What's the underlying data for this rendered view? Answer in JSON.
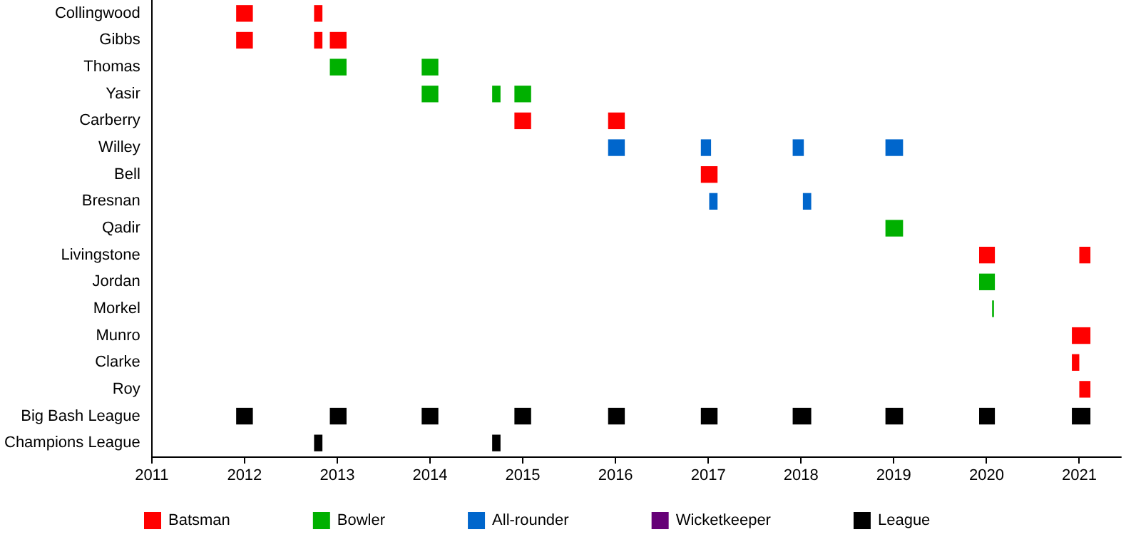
{
  "chart_data": {
    "type": "bar",
    "orientation": "horizontal",
    "grid": false,
    "legend": "bottom",
    "categories": [
      "Collingwood",
      "Gibbs",
      "Thomas",
      "Yasir",
      "Carberry",
      "Willey",
      "Bell",
      "Bresnan",
      "Qadir",
      "Livingstone",
      "Jordan",
      "Morkel",
      "Munro",
      "Clarke",
      "Roy",
      "Big Bash League",
      "Champions League"
    ],
    "xlim": [
      2011,
      2021.45
    ],
    "xticks": [
      2011,
      2012,
      2013,
      2014,
      2015,
      2016,
      2017,
      2018,
      2019,
      2020,
      2021
    ],
    "series": [
      {
        "name": "Batsman",
        "color": "#ff0000",
        "base": [
          2011.91,
          2011.91,
          null,
          null,
          2014.91,
          null,
          2016.92,
          null,
          null,
          2019.92,
          null,
          null,
          2020.92,
          2020.92,
          2021.0,
          null,
          null
        ],
        "values": [
          0.18,
          0.18,
          null,
          null,
          0.18,
          null,
          0.18,
          null,
          null,
          0.17,
          null,
          null,
          0.2,
          0.08,
          0.12,
          null,
          null
        ]
      },
      {
        "color": "#ff0000",
        "base": [
          2012.75,
          2012.75,
          null,
          null,
          2015.92,
          null,
          null,
          null,
          null,
          2021.0,
          null,
          null,
          null,
          null,
          null,
          null,
          null
        ],
        "values": [
          0.09,
          0.09,
          null,
          null,
          0.18,
          null,
          null,
          null,
          null,
          0.12,
          null,
          null,
          null,
          null,
          null,
          null,
          null
        ]
      },
      {
        "color": "#ff0000",
        "base": [
          null,
          2012.92,
          null,
          null,
          null,
          null,
          null,
          null,
          null,
          null,
          null,
          null,
          null,
          null,
          null,
          null,
          null
        ],
        "values": [
          null,
          0.18,
          null,
          null,
          null,
          null,
          null,
          null,
          null,
          null,
          null,
          null,
          null,
          null,
          null,
          null,
          null
        ]
      },
      {
        "name": "Bowler",
        "color": "#00b000",
        "base": [
          null,
          null,
          2012.92,
          2013.91,
          null,
          null,
          null,
          null,
          2018.91,
          null,
          2019.92,
          2020.06,
          null,
          null,
          null,
          null,
          null
        ],
        "values": [
          null,
          null,
          0.18,
          0.18,
          null,
          null,
          null,
          null,
          0.19,
          null,
          0.17,
          0.02,
          null,
          null,
          null,
          null,
          null
        ]
      },
      {
        "color": "#00b000",
        "base": [
          null,
          null,
          2013.91,
          2014.67,
          null,
          null,
          null,
          null,
          null,
          null,
          null,
          null,
          null,
          null,
          null,
          null,
          null
        ],
        "values": [
          null,
          null,
          0.18,
          0.09,
          null,
          null,
          null,
          null,
          null,
          null,
          null,
          null,
          null,
          null,
          null,
          null,
          null
        ]
      },
      {
        "color": "#00b000",
        "base": [
          null,
          null,
          null,
          2014.91,
          null,
          null,
          null,
          null,
          null,
          null,
          null,
          null,
          null,
          null,
          null,
          null,
          null
        ],
        "values": [
          null,
          null,
          null,
          0.18,
          null,
          null,
          null,
          null,
          null,
          null,
          null,
          null,
          null,
          null,
          null,
          null,
          null
        ]
      },
      {
        "name": "All-rounder",
        "color": "#0066cc",
        "base": [
          null,
          null,
          null,
          null,
          null,
          2015.92,
          null,
          2017.01,
          null,
          null,
          null,
          null,
          null,
          null,
          null,
          null,
          null
        ],
        "values": [
          null,
          null,
          null,
          null,
          null,
          0.18,
          null,
          0.09,
          null,
          null,
          null,
          null,
          null,
          null,
          null,
          null,
          null
        ]
      },
      {
        "color": "#0066cc",
        "base": [
          null,
          null,
          null,
          null,
          null,
          2016.92,
          null,
          2018.02,
          null,
          null,
          null,
          null,
          null,
          null,
          null,
          null,
          null
        ],
        "values": [
          null,
          null,
          null,
          null,
          null,
          0.11,
          null,
          0.09,
          null,
          null,
          null,
          null,
          null,
          null,
          null,
          null,
          null
        ]
      },
      {
        "color": "#0066cc",
        "base": [
          null,
          null,
          null,
          null,
          null,
          2017.91,
          null,
          null,
          null,
          null,
          null,
          null,
          null,
          null,
          null,
          null,
          null
        ],
        "values": [
          null,
          null,
          null,
          null,
          null,
          0.12,
          null,
          null,
          null,
          null,
          null,
          null,
          null,
          null,
          null,
          null,
          null
        ]
      },
      {
        "color": "#0066cc",
        "base": [
          null,
          null,
          null,
          null,
          null,
          2018.91,
          null,
          null,
          null,
          null,
          null,
          null,
          null,
          null,
          null,
          null,
          null
        ],
        "values": [
          null,
          null,
          null,
          null,
          null,
          0.19,
          null,
          null,
          null,
          null,
          null,
          null,
          null,
          null,
          null,
          null,
          null
        ]
      },
      {
        "name": "Wicketkeeper",
        "color": "#660077",
        "base": [
          null,
          null,
          null,
          null,
          null,
          null,
          null,
          null,
          null,
          null,
          null,
          null,
          null,
          null,
          null,
          null,
          null
        ],
        "values": [
          null,
          null,
          null,
          null,
          null,
          null,
          null,
          null,
          null,
          null,
          null,
          null,
          null,
          null,
          null,
          null,
          null
        ]
      },
      {
        "name": "League",
        "color": "#000000",
        "base": [
          null,
          null,
          null,
          null,
          null,
          null,
          null,
          null,
          null,
          null,
          null,
          null,
          null,
          null,
          null,
          2011.91,
          2012.75
        ],
        "values": [
          null,
          null,
          null,
          null,
          null,
          null,
          null,
          null,
          null,
          null,
          null,
          null,
          null,
          null,
          null,
          0.18,
          0.09
        ]
      },
      {
        "color": "#000000",
        "base": [
          null,
          null,
          null,
          null,
          null,
          null,
          null,
          null,
          null,
          null,
          null,
          null,
          null,
          null,
          null,
          2012.92,
          2014.67
        ],
        "values": [
          null,
          null,
          null,
          null,
          null,
          null,
          null,
          null,
          null,
          null,
          null,
          null,
          null,
          null,
          null,
          0.18,
          0.09
        ]
      },
      {
        "color": "#000000",
        "base": [
          null,
          null,
          null,
          null,
          null,
          null,
          null,
          null,
          null,
          null,
          null,
          null,
          null,
          null,
          null,
          2013.91,
          null
        ],
        "values": [
          null,
          null,
          null,
          null,
          null,
          null,
          null,
          null,
          null,
          null,
          null,
          null,
          null,
          null,
          null,
          0.18,
          null
        ]
      },
      {
        "color": "#000000",
        "base": [
          null,
          null,
          null,
          null,
          null,
          null,
          null,
          null,
          null,
          null,
          null,
          null,
          null,
          null,
          null,
          2014.91,
          null
        ],
        "values": [
          null,
          null,
          null,
          null,
          null,
          null,
          null,
          null,
          null,
          null,
          null,
          null,
          null,
          null,
          null,
          0.18,
          null
        ]
      },
      {
        "color": "#000000",
        "base": [
          null,
          null,
          null,
          null,
          null,
          null,
          null,
          null,
          null,
          null,
          null,
          null,
          null,
          null,
          null,
          2015.92,
          null
        ],
        "values": [
          null,
          null,
          null,
          null,
          null,
          null,
          null,
          null,
          null,
          null,
          null,
          null,
          null,
          null,
          null,
          0.18,
          null
        ]
      },
      {
        "color": "#000000",
        "base": [
          null,
          null,
          null,
          null,
          null,
          null,
          null,
          null,
          null,
          null,
          null,
          null,
          null,
          null,
          null,
          2016.92,
          null
        ],
        "values": [
          null,
          null,
          null,
          null,
          null,
          null,
          null,
          null,
          null,
          null,
          null,
          null,
          null,
          null,
          null,
          0.18,
          null
        ]
      },
      {
        "color": "#000000",
        "base": [
          null,
          null,
          null,
          null,
          null,
          null,
          null,
          null,
          null,
          null,
          null,
          null,
          null,
          null,
          null,
          2017.91,
          null
        ],
        "values": [
          null,
          null,
          null,
          null,
          null,
          null,
          null,
          null,
          null,
          null,
          null,
          null,
          null,
          null,
          null,
          0.2,
          null
        ]
      },
      {
        "color": "#000000",
        "base": [
          null,
          null,
          null,
          null,
          null,
          null,
          null,
          null,
          null,
          null,
          null,
          null,
          null,
          null,
          null,
          2018.91,
          null
        ],
        "values": [
          null,
          null,
          null,
          null,
          null,
          null,
          null,
          null,
          null,
          null,
          null,
          null,
          null,
          null,
          null,
          0.19,
          null
        ]
      },
      {
        "color": "#000000",
        "base": [
          null,
          null,
          null,
          null,
          null,
          null,
          null,
          null,
          null,
          null,
          null,
          null,
          null,
          null,
          null,
          2019.92,
          null
        ],
        "values": [
          null,
          null,
          null,
          null,
          null,
          null,
          null,
          null,
          null,
          null,
          null,
          null,
          null,
          null,
          null,
          0.17,
          null
        ]
      },
      {
        "color": "#000000",
        "base": [
          null,
          null,
          null,
          null,
          null,
          null,
          null,
          null,
          null,
          null,
          null,
          null,
          null,
          null,
          null,
          2020.92,
          null
        ],
        "values": [
          null,
          null,
          null,
          null,
          null,
          null,
          null,
          null,
          null,
          null,
          null,
          null,
          null,
          null,
          null,
          0.2,
          null
        ]
      }
    ]
  }
}
